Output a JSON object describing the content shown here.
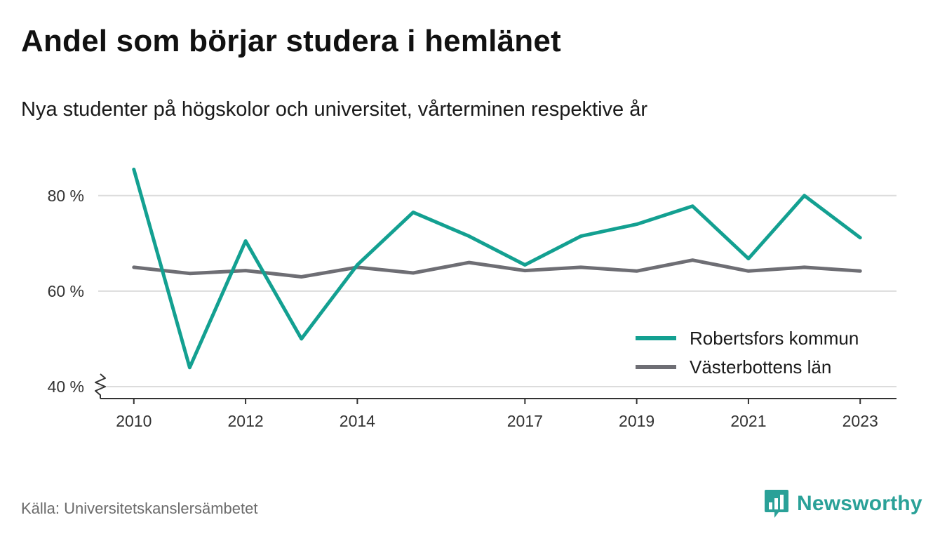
{
  "header": {
    "title": "Andel som börjar studera i hemlänet",
    "subtitle": "Nya studenter på högskolor och universitet, vårterminen respektive år"
  },
  "footer": {
    "source": "Källa: Universitetskanslersämbetet",
    "brand": "Newsworthy"
  },
  "colors": {
    "series_primary": "#13a091",
    "series_secondary": "#6e6e74",
    "grid": "#dcdcdc",
    "axis": "#333333",
    "brand": "#2aa198"
  },
  "icons": {
    "brand_logo": "bar-chart-speech-bubble-icon",
    "axis_break": "zigzag-axis-break-icon"
  },
  "chart_data": {
    "type": "line",
    "x": [
      2010,
      2011,
      2012,
      2013,
      2014,
      2015,
      2016,
      2017,
      2018,
      2019,
      2020,
      2021,
      2022,
      2023
    ],
    "xticks": [
      2010,
      2012,
      2014,
      2017,
      2019,
      2021,
      2023
    ],
    "xtick_labels": [
      "2010",
      "2012",
      "2014",
      "2017",
      "2019",
      "2021",
      "2023"
    ],
    "yticks": [
      40,
      60,
      80
    ],
    "ytick_labels": [
      "40 %",
      "60 %",
      "80 %"
    ],
    "ylim": [
      40,
      85.7
    ],
    "xlim": [
      2009.4,
      2023.65
    ],
    "grid": true,
    "legend_position": "bottom-right",
    "series": [
      {
        "name": "Robertsfors kommun",
        "values": [
          85.5,
          44.0,
          70.5,
          50.0,
          65.5,
          76.5,
          71.5,
          65.5,
          71.5,
          74.0,
          77.8,
          66.8,
          80.0,
          71.2
        ]
      },
      {
        "name": "Västerbottens län",
        "values": [
          65.0,
          63.7,
          64.3,
          63.0,
          65.0,
          63.8,
          66.0,
          64.3,
          65.0,
          64.2,
          66.5,
          64.2,
          65.0,
          64.2
        ]
      }
    ]
  }
}
